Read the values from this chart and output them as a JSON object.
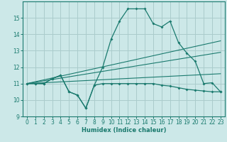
{
  "xlabel": "Humidex (Indice chaleur)",
  "bg_color": "#cce8e8",
  "line_color": "#1a7a6e",
  "grid_color": "#aacccc",
  "xlim": [
    -0.5,
    23.5
  ],
  "ylim": [
    9,
    16
  ],
  "yticks": [
    9,
    10,
    11,
    12,
    13,
    14,
    15
  ],
  "xticks": [
    0,
    1,
    2,
    3,
    4,
    5,
    6,
    7,
    8,
    9,
    10,
    11,
    12,
    13,
    14,
    15,
    16,
    17,
    18,
    19,
    20,
    21,
    22,
    23
  ],
  "curve_main_x": [
    0,
    1,
    2,
    3,
    4,
    5,
    6,
    7,
    8,
    9,
    10,
    11,
    12,
    13,
    14,
    15,
    16,
    17,
    18,
    19,
    20,
    21,
    22,
    23
  ],
  "curve_main_y": [
    11.0,
    11.0,
    11.0,
    11.3,
    11.5,
    10.5,
    10.3,
    9.5,
    10.9,
    12.0,
    13.7,
    14.8,
    15.55,
    15.55,
    15.55,
    14.65,
    14.45,
    14.8,
    13.5,
    12.85,
    12.35,
    11.0,
    11.05,
    10.5
  ],
  "curve_flat_x": [
    0,
    1,
    2,
    3,
    4,
    5,
    6,
    7,
    8,
    9,
    10,
    11,
    12,
    13,
    14,
    15,
    16,
    17,
    18,
    19,
    20,
    21,
    22,
    23
  ],
  "curve_flat_y": [
    11.0,
    11.0,
    11.0,
    11.3,
    11.5,
    10.5,
    10.3,
    9.5,
    10.9,
    11.0,
    11.0,
    11.0,
    11.0,
    11.0,
    11.0,
    11.0,
    10.9,
    10.85,
    10.75,
    10.65,
    10.6,
    10.55,
    10.5,
    10.5
  ],
  "line1_x": [
    0,
    23
  ],
  "line1_y": [
    11.0,
    13.6
  ],
  "line2_x": [
    0,
    23
  ],
  "line2_y": [
    11.0,
    12.9
  ],
  "line3_x": [
    0,
    23
  ],
  "line3_y": [
    11.0,
    11.6
  ]
}
